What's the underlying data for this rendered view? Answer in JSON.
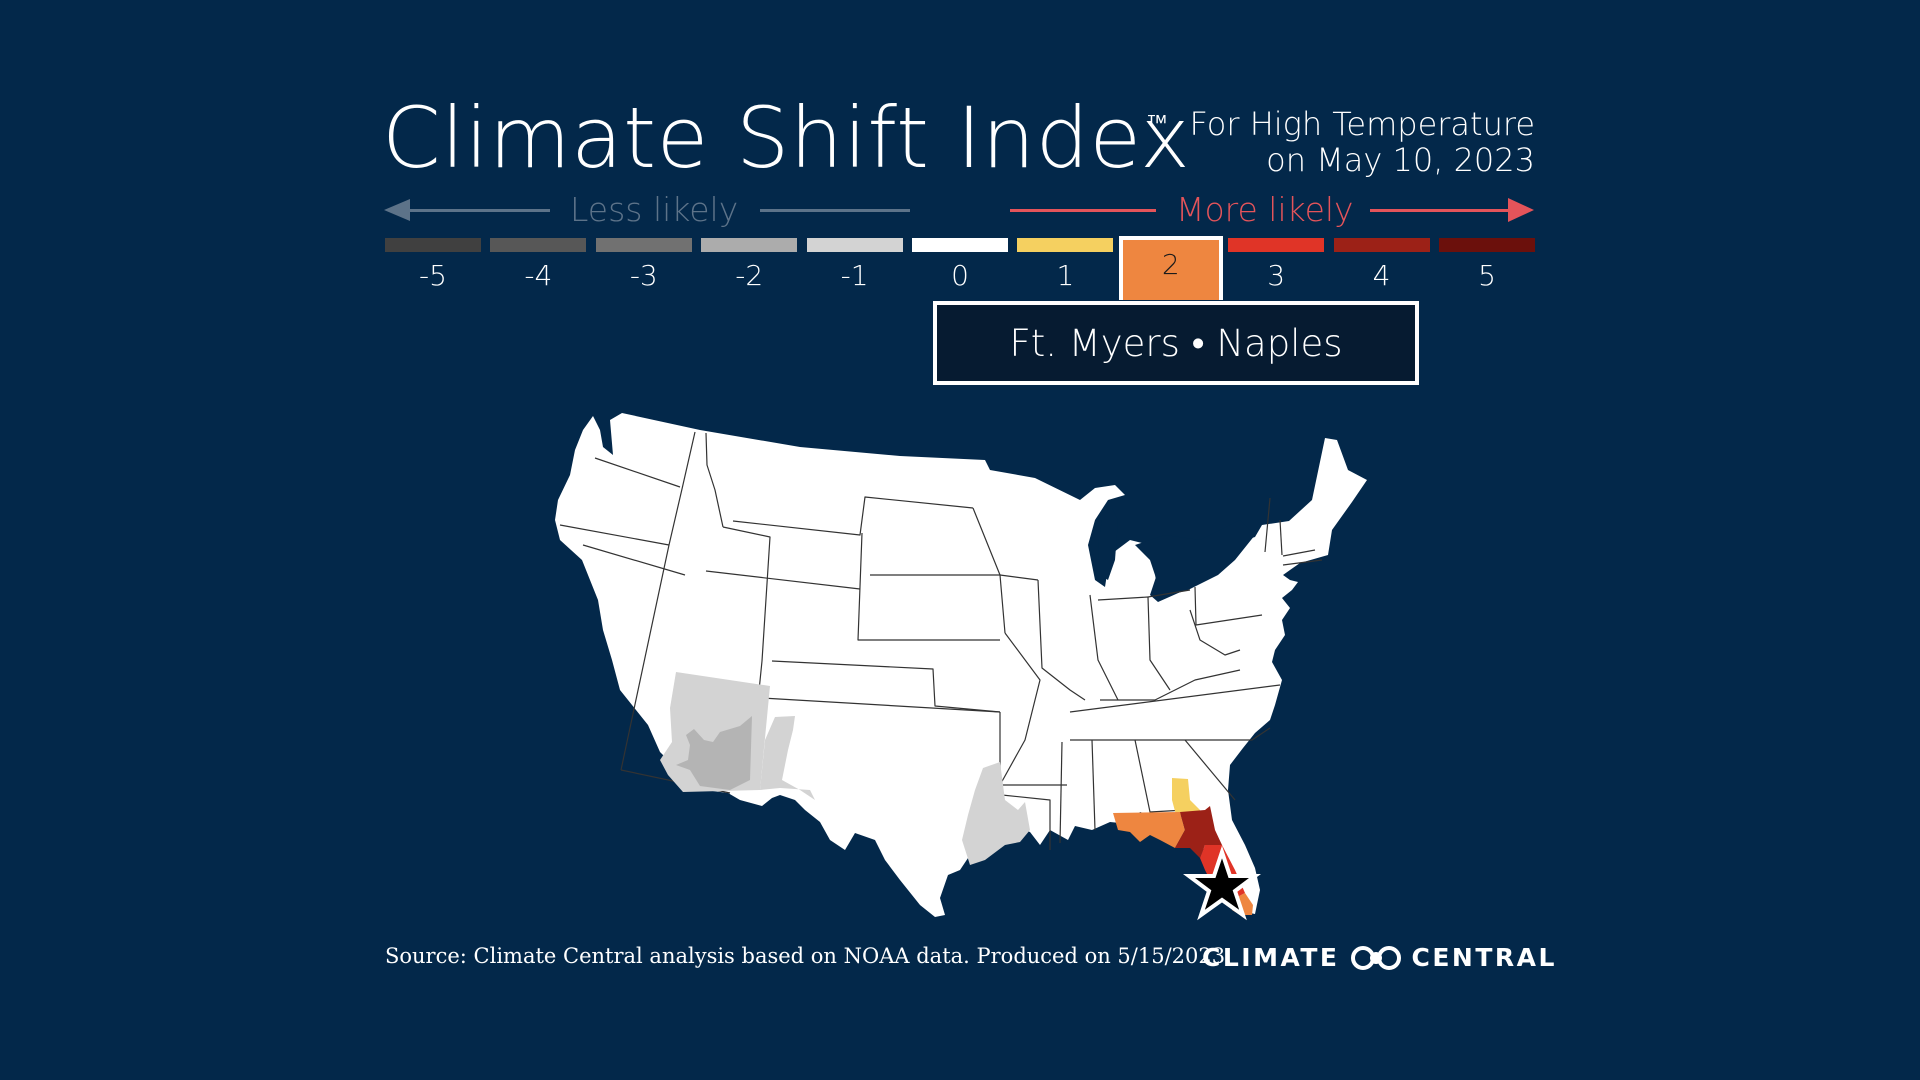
{
  "header": {
    "title": "Climate Shift Index",
    "trademark": "™",
    "subtitle_line1": "For High Temperature",
    "subtitle_line2": "on May 10, 2023"
  },
  "scale": {
    "less_label": "Less likely",
    "more_label": "More likely",
    "less_color": "#5d7389",
    "more_color": "#e4545a",
    "selected_value": "2",
    "levels": [
      {
        "value": "-5",
        "color": "#404040"
      },
      {
        "value": "-4",
        "color": "#575757"
      },
      {
        "value": "-3",
        "color": "#717171"
      },
      {
        "value": "-2",
        "color": "#acacac"
      },
      {
        "value": "-1",
        "color": "#d3d3d3"
      },
      {
        "value": "0",
        "color": "#ffffff"
      },
      {
        "value": "1",
        "color": "#f5d060"
      },
      {
        "value": "2",
        "color": "#ee8640"
      },
      {
        "value": "3",
        "color": "#e03427"
      },
      {
        "value": "4",
        "color": "#9c2117"
      },
      {
        "value": "5",
        "color": "#6b100c"
      }
    ]
  },
  "location": {
    "label": "Ft. Myers • Naples",
    "marker": "star-icon"
  },
  "map": {
    "region": "Contiguous United States",
    "highlighted_areas": [
      {
        "area": "Southwest Arizona",
        "csi": -3
      },
      {
        "area": "Arizona / New Mexico",
        "csi": -1
      },
      {
        "area": "East Texas / West Louisiana",
        "csi": -1
      },
      {
        "area": "South Georgia",
        "csi": 1
      },
      {
        "area": "Florida Panhandle",
        "csi": 2
      },
      {
        "area": "North Florida",
        "csi": 4
      },
      {
        "area": "Central Florida",
        "csi": 3
      },
      {
        "area": "Southeast Florida",
        "csi": 2
      }
    ]
  },
  "footer": {
    "source": "Source: Climate Central analysis based on NOAA data. Produced on 5/15/2023.",
    "brand_left": "CLIMATE",
    "brand_right": "CENTRAL"
  }
}
